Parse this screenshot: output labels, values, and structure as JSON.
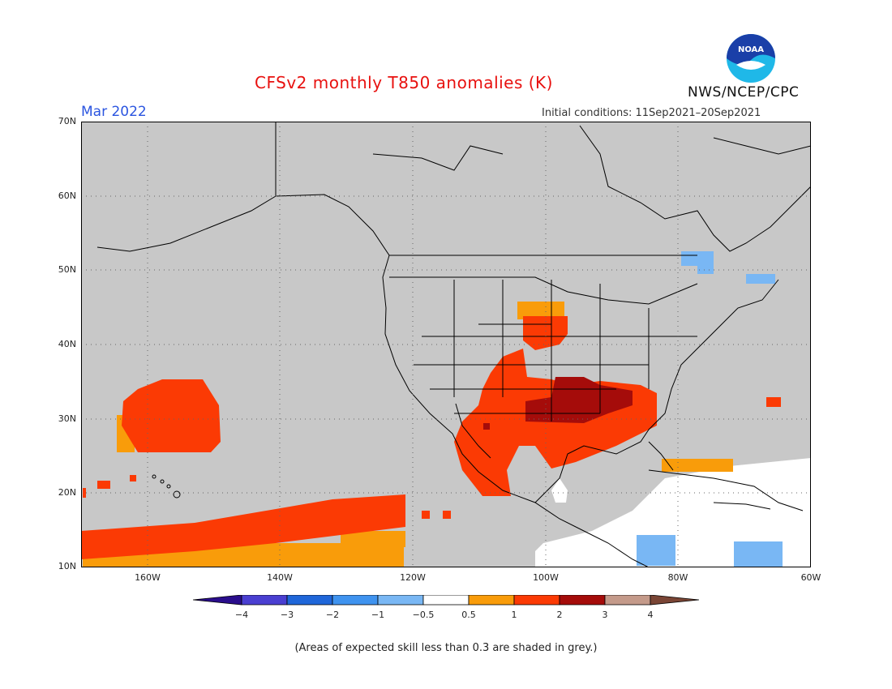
{
  "header": {
    "title": "CFSv2 monthly T850 anomalies (K)",
    "month": "Mar 2022",
    "initial_conditions": "Initial conditions: 11Sep2021–20Sep2021",
    "organization": "NWS/NCEP/CPC",
    "logo_text": "NOAA"
  },
  "map": {
    "projection": "lat-lon",
    "lat_range": [
      10,
      70
    ],
    "lon_range": [
      -170,
      -60
    ],
    "lat_labels": [
      "70N",
      "60N",
      "50N",
      "40N",
      "30N",
      "20N",
      "10N"
    ],
    "lon_labels": [
      "160W",
      "140W",
      "120W",
      "100W",
      "80W",
      "60W"
    ],
    "gridlines": "dotted",
    "background_low_skill_color": "#c8c8c8"
  },
  "colorbar": {
    "labels": [
      "−4",
      "−3",
      "−2",
      "−1",
      "−0.5",
      "0.5",
      "1",
      "2",
      "3",
      "4"
    ],
    "colors": [
      "#2a0d8c",
      "#4a3fd1",
      "#1f66d9",
      "#3f93ef",
      "#79b7f4",
      "#ffffff",
      "#f99c0a",
      "#fb3a04",
      "#a50c0a",
      "#c49a8a",
      "#7a4535"
    ]
  },
  "footer": {
    "note": "(Areas of expected skill less than 0.3 are shaded in grey.)"
  }
}
